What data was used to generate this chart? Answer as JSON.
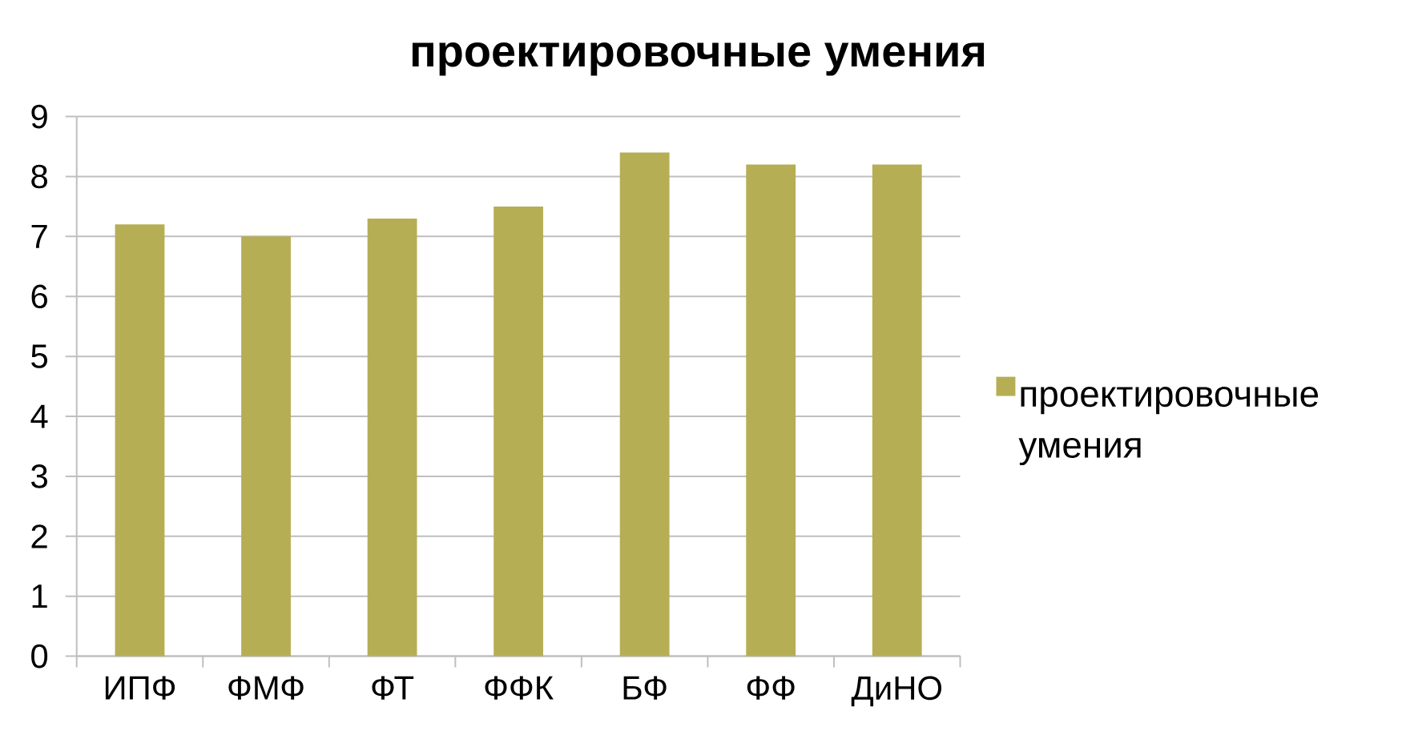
{
  "chart_data": {
    "type": "bar",
    "title": "проектировочные умения",
    "categories": [
      "ИПФ",
      "ФМФ",
      "ФТ",
      "ФФК",
      "БФ",
      "ФФ",
      "ДиНО"
    ],
    "series": [
      {
        "name": "проектировочные умения",
        "color": "#b5ae55",
        "values": [
          7.2,
          7.0,
          7.3,
          7.5,
          8.4,
          8.2,
          8.2
        ]
      }
    ],
    "ylim": [
      0,
      9
    ],
    "yticks": [
      0,
      1,
      2,
      3,
      4,
      5,
      6,
      7,
      8,
      9
    ],
    "grid": "y",
    "legend": "right"
  }
}
